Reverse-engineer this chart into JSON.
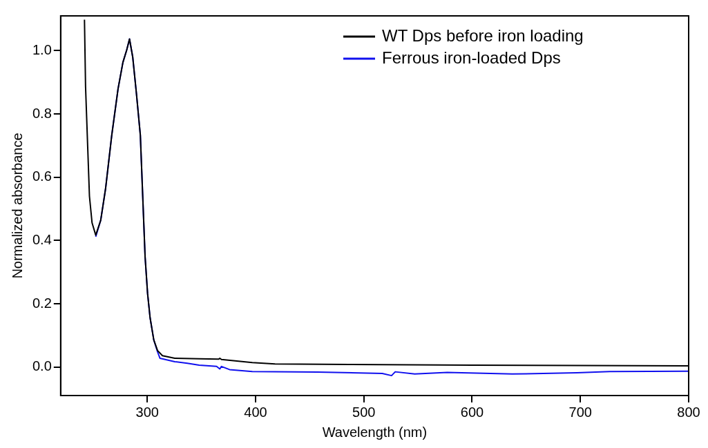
{
  "chart_data": {
    "type": "line",
    "xlabel": "Wavelength (nm)",
    "ylabel": "Normalized absorbance",
    "xlim": [
      220,
      800
    ],
    "xticks": [
      300,
      400,
      500,
      600,
      700,
      800
    ],
    "ylim": [
      -0.09,
      1.11
    ],
    "yticks": [
      {
        "value": 0,
        "label": "0.0"
      },
      0.2,
      0.4,
      0.6,
      0.8,
      {
        "value": 1,
        "label": "1.0"
      }
    ],
    "grid": false,
    "legend": "top right",
    "marker": "none",
    "line_style": "solid",
    "series": [
      {
        "name": "WT Dps before iron loading",
        "color": "#000000",
        "x": [
          242,
          243,
          245,
          246.6,
          249,
          252.4,
          257,
          261.5,
          267.2,
          273,
          277.5,
          281,
          283.6,
          286.6,
          290,
          293.6,
          295.8,
          298,
          300.3,
          302.6,
          306,
          309.5,
          314,
          325.4,
          348,
          366,
          367,
          368.5,
          397,
          418,
          487,
          600,
          700,
          800
        ],
        "values": [
          1.098,
          0.887,
          0.694,
          0.54,
          0.456,
          0.417,
          0.464,
          0.564,
          0.733,
          0.879,
          0.963,
          1.002,
          1.037,
          0.979,
          0.864,
          0.733,
          0.54,
          0.348,
          0.232,
          0.156,
          0.086,
          0.052,
          0.036,
          0.028,
          0.026,
          0.025,
          0.028,
          0.024,
          0.014,
          0.01,
          0.008,
          0.006,
          0.005,
          0.004
        ]
      },
      {
        "name": "Ferrous iron-loaded Dps",
        "color": "#1010ee",
        "x": [
          252.4,
          257,
          261.5,
          267.2,
          273,
          277.5,
          281,
          283.6,
          286.6,
          290,
          293.6,
          295.8,
          298,
          300.3,
          302.6,
          306,
          309.5,
          311.7,
          325.4,
          337,
          348,
          364,
          367,
          368.5,
          376,
          397,
          457,
          517,
          525.6,
          529,
          547,
          577,
          637,
          697,
          727,
          800
        ],
        "values": [
          0.412,
          0.464,
          0.564,
          0.733,
          0.879,
          0.963,
          1.002,
          1.037,
          0.979,
          0.864,
          0.733,
          0.54,
          0.348,
          0.232,
          0.156,
          0.086,
          0.048,
          0.028,
          0.017,
          0.012,
          0.006,
          0.002,
          -0.006,
          0.002,
          -0.008,
          -0.014,
          -0.016,
          -0.02,
          -0.027,
          -0.015,
          -0.022,
          -0.017,
          -0.022,
          -0.018,
          -0.014,
          -0.013
        ]
      }
    ]
  }
}
